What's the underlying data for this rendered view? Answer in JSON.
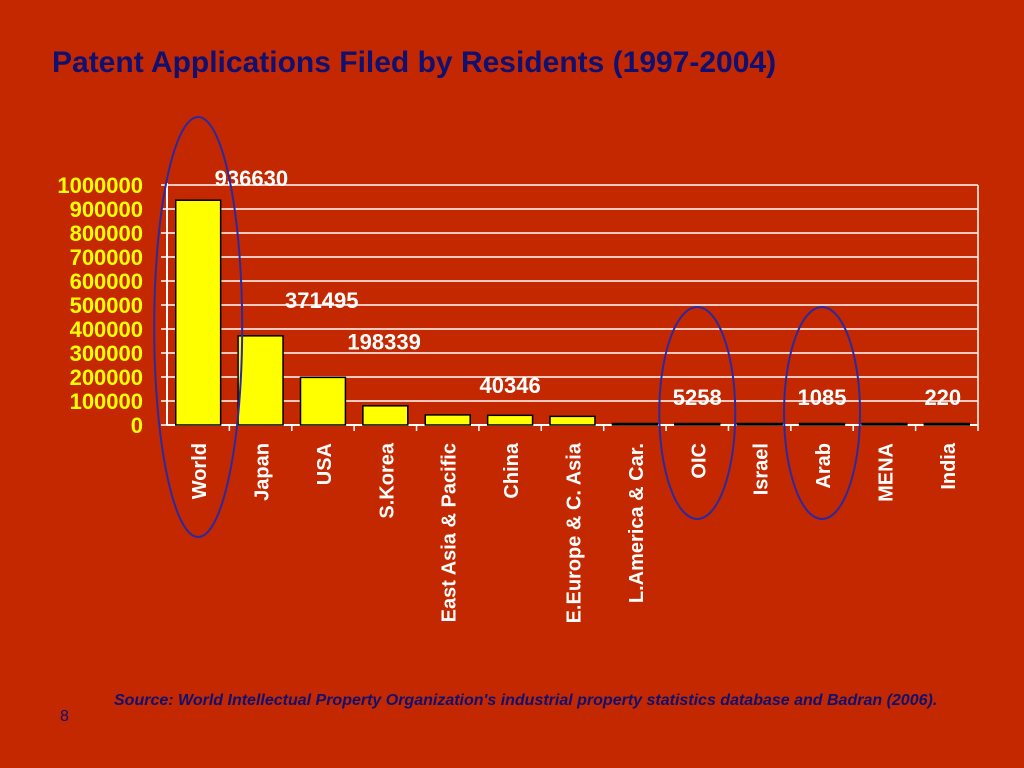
{
  "slide": {
    "title": "Patent Applications Filed by Residents (1997-2004)",
    "source": "Source: World Intellectual Property Organization's industrial property statistics database and Badran (2006).",
    "page_number": "8"
  },
  "colors": {
    "background": "#c42800",
    "title_text": "#101070",
    "bar_fill": "#ffff00",
    "axis_label": "#ffff00",
    "label_text": "#ffffff",
    "highlight_circle": "#2a2aa0"
  },
  "chart_data": {
    "type": "bar",
    "title": "Patent Applications Filed by Residents (1997-2004)",
    "categories": [
      "World",
      "Japan",
      "USA",
      "S.Korea",
      "East Asia & Pacific",
      "China",
      "E.Europe & C. Asia",
      "L.America & Car.",
      "OIC",
      "Israel",
      "Arab",
      "MENA",
      "India"
    ],
    "values": [
      936630,
      371495,
      198339,
      80000,
      42000,
      40346,
      36000,
      6000,
      5258,
      1500,
      1085,
      700,
      220
    ],
    "data_labels": [
      {
        "category": "World",
        "text": "936630"
      },
      {
        "category": "Japan",
        "text": "371495"
      },
      {
        "category": "USA",
        "text": "198339"
      },
      {
        "category": "China",
        "text": "40346"
      },
      {
        "category": "OIC",
        "text": "5258"
      },
      {
        "category": "Arab",
        "text": "1085"
      },
      {
        "category": "India",
        "text": "220"
      }
    ],
    "ylim": [
      0,
      1000000
    ],
    "yticks": [
      "0",
      "100000",
      "200000",
      "300000",
      "400000",
      "500000",
      "600000",
      "700000",
      "800000",
      "900000",
      "1000000"
    ],
    "grid": true,
    "highlighted": [
      "World",
      "OIC",
      "Arab"
    ]
  }
}
